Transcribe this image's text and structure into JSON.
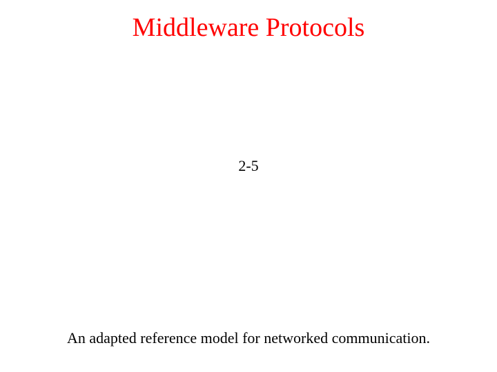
{
  "slide": {
    "title": "Middleware Protocols",
    "figure_number": "2-5",
    "caption": "An adapted reference model for networked communication."
  },
  "styles": {
    "title_color": "#ff0000",
    "text_color": "#000000",
    "background_color": "#ffffff",
    "title_fontsize": 38,
    "body_fontsize": 22,
    "font_family": "Times New Roman"
  }
}
